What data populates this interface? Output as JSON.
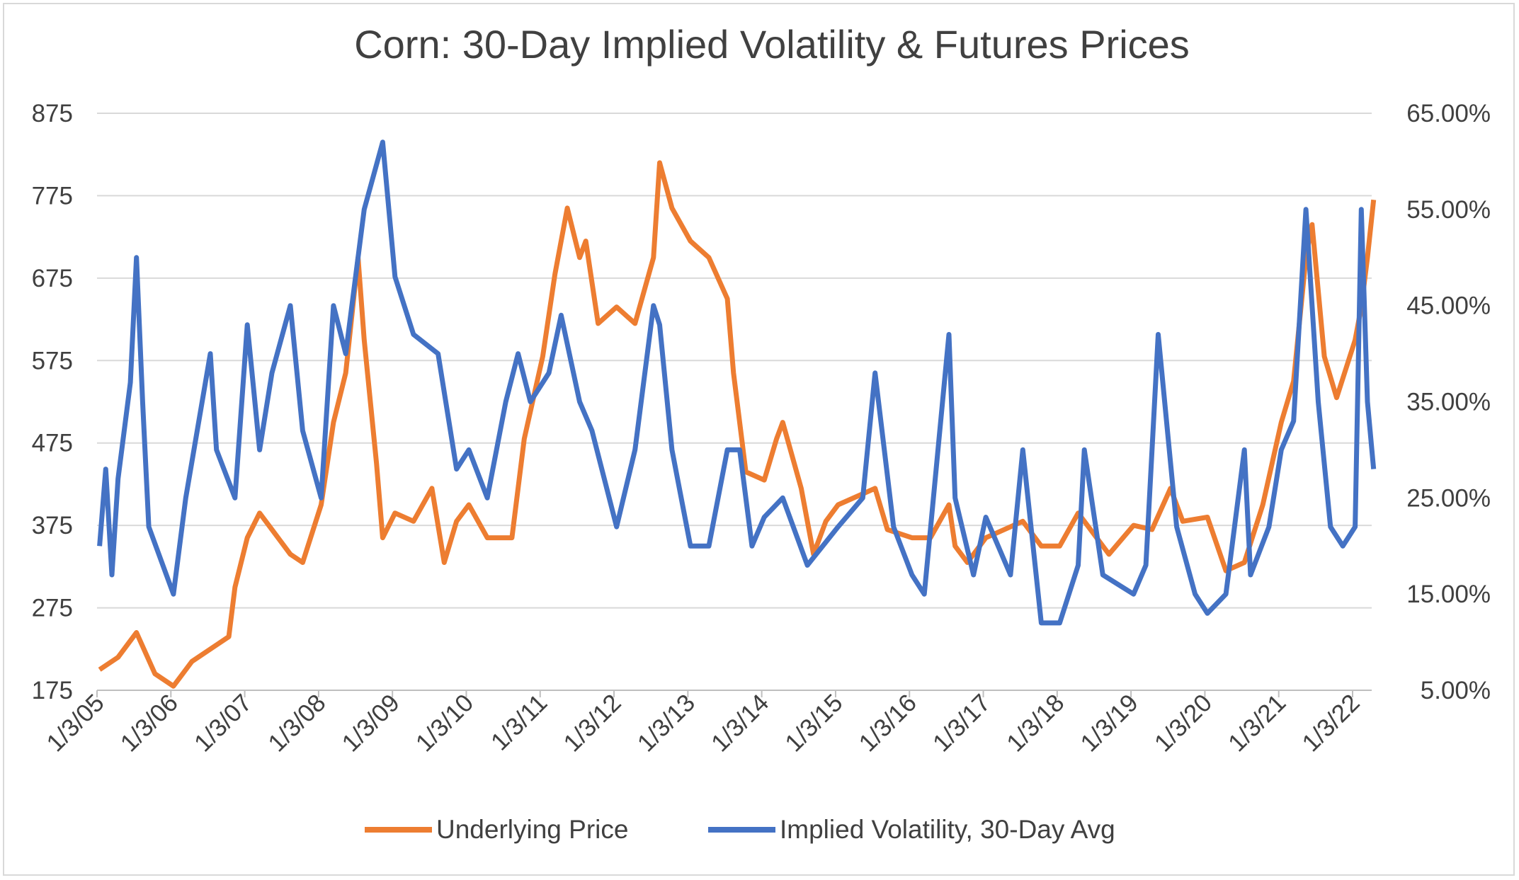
{
  "chart_data": {
    "type": "line",
    "title": "Corn: 30-Day Implied Volatility & Futures Prices",
    "xlabel": "",
    "ylabel": "",
    "x_tick_labels": [
      "1/3/05",
      "1/3/06",
      "1/3/07",
      "1/3/08",
      "1/3/09",
      "1/3/10",
      "1/3/11",
      "1/3/12",
      "1/3/13",
      "1/3/14",
      "1/3/15",
      "1/3/16",
      "1/3/17",
      "1/3/18",
      "1/3/19",
      "1/3/20",
      "1/3/21",
      "1/3/22"
    ],
    "y_left": {
      "ylim": [
        175,
        875
      ],
      "ticks": [
        "875",
        "775",
        "675",
        "575",
        "475",
        "375",
        "275",
        "175"
      ]
    },
    "y_right": {
      "ylim": [
        0.05,
        0.65
      ],
      "ticks": [
        "65.00%",
        "55.00%",
        "45.00%",
        "35.00%",
        "25.00%",
        "15.00%",
        "5.00%"
      ]
    },
    "grid": true,
    "legend_position": "bottom",
    "series": [
      {
        "name": "Underlying Price",
        "axis": "left",
        "color": "#ed7d31",
        "x": [
          "2005-01",
          "2005-04",
          "2005-07",
          "2005-10",
          "2006-01",
          "2006-04",
          "2006-08",
          "2006-10",
          "2006-11",
          "2007-01",
          "2007-03",
          "2007-05",
          "2007-08",
          "2007-10",
          "2008-01",
          "2008-03",
          "2008-05",
          "2008-07",
          "2008-08",
          "2008-10",
          "2008-11",
          "2009-01",
          "2009-04",
          "2009-07",
          "2009-09",
          "2009-11",
          "2010-01",
          "2010-04",
          "2010-08",
          "2010-10",
          "2011-01",
          "2011-03",
          "2011-05",
          "2011-07",
          "2011-08",
          "2011-10",
          "2012-01",
          "2012-04",
          "2012-07",
          "2012-08",
          "2012-10",
          "2013-01",
          "2013-04",
          "2013-07",
          "2013-08",
          "2013-10",
          "2014-01",
          "2014-03",
          "2014-04",
          "2014-07",
          "2014-09",
          "2014-11",
          "2015-01",
          "2015-07",
          "2015-09",
          "2016-01",
          "2016-04",
          "2016-07",
          "2016-08",
          "2016-10",
          "2017-01",
          "2017-07",
          "2017-10",
          "2018-01",
          "2018-04",
          "2018-07",
          "2018-09",
          "2019-01",
          "2019-04",
          "2019-07",
          "2019-09",
          "2020-01",
          "2020-04",
          "2020-07",
          "2020-10",
          "2021-01",
          "2021-03",
          "2021-05",
          "2021-06",
          "2021-08",
          "2021-10",
          "2022-01",
          "2022-02",
          "2022-03",
          "2022-04"
        ],
        "y": [
          200,
          215,
          245,
          195,
          180,
          210,
          230,
          240,
          300,
          360,
          390,
          370,
          340,
          330,
          400,
          500,
          560,
          700,
          600,
          450,
          360,
          390,
          380,
          420,
          330,
          380,
          400,
          360,
          360,
          480,
          580,
          680,
          760,
          700,
          720,
          620,
          640,
          620,
          700,
          815,
          760,
          720,
          700,
          650,
          560,
          440,
          430,
          480,
          500,
          420,
          340,
          380,
          400,
          420,
          370,
          360,
          360,
          400,
          350,
          330,
          360,
          380,
          350,
          350,
          390,
          360,
          340,
          375,
          370,
          420,
          380,
          385,
          320,
          330,
          400,
          500,
          550,
          700,
          740,
          580,
          530,
          600,
          640,
          700,
          770
        ]
      },
      {
        "name": "Implied Volatility, 30-Day Avg",
        "axis": "right",
        "color": "#4472c4",
        "x": [
          "2005-01",
          "2005-02",
          "2005-03",
          "2005-04",
          "2005-06",
          "2005-07",
          "2005-08",
          "2005-09",
          "2006-01",
          "2006-03",
          "2006-07",
          "2006-08",
          "2006-11",
          "2007-01",
          "2007-03",
          "2007-05",
          "2007-08",
          "2007-10",
          "2008-01",
          "2008-03",
          "2008-05",
          "2008-08",
          "2008-11",
          "2009-01",
          "2009-04",
          "2009-08",
          "2009-11",
          "2010-01",
          "2010-04",
          "2010-07",
          "2010-09",
          "2010-11",
          "2011-02",
          "2011-04",
          "2011-07",
          "2011-09",
          "2012-01",
          "2012-04",
          "2012-07",
          "2012-08",
          "2012-10",
          "2013-01",
          "2013-04",
          "2013-07",
          "2013-09",
          "2013-11",
          "2014-01",
          "2014-04",
          "2014-08",
          "2015-01",
          "2015-05",
          "2015-07",
          "2015-10",
          "2016-01",
          "2016-03",
          "2016-07",
          "2016-08",
          "2016-11",
          "2017-01",
          "2017-05",
          "2017-07",
          "2017-10",
          "2018-01",
          "2018-04",
          "2018-05",
          "2018-08",
          "2019-01",
          "2019-03",
          "2019-05",
          "2019-08",
          "2019-11",
          "2020-01",
          "2020-04",
          "2020-07",
          "2020-08",
          "2020-11",
          "2021-01",
          "2021-03",
          "2021-05",
          "2021-07",
          "2021-09",
          "2021-11",
          "2022-01",
          "2022-02",
          "2022-03",
          "2022-04"
        ],
        "y": [
          0.2,
          0.28,
          0.17,
          0.27,
          0.37,
          0.5,
          0.35,
          0.22,
          0.15,
          0.25,
          0.4,
          0.3,
          0.25,
          0.43,
          0.3,
          0.38,
          0.45,
          0.32,
          0.25,
          0.45,
          0.4,
          0.55,
          0.62,
          0.48,
          0.42,
          0.4,
          0.28,
          0.3,
          0.25,
          0.35,
          0.4,
          0.35,
          0.38,
          0.44,
          0.35,
          0.32,
          0.22,
          0.3,
          0.45,
          0.43,
          0.3,
          0.2,
          0.2,
          0.3,
          0.3,
          0.2,
          0.23,
          0.25,
          0.18,
          0.22,
          0.25,
          0.38,
          0.22,
          0.17,
          0.15,
          0.42,
          0.25,
          0.17,
          0.23,
          0.17,
          0.3,
          0.12,
          0.12,
          0.18,
          0.3,
          0.17,
          0.15,
          0.18,
          0.42,
          0.22,
          0.15,
          0.13,
          0.15,
          0.3,
          0.17,
          0.22,
          0.3,
          0.33,
          0.55,
          0.35,
          0.22,
          0.2,
          0.22,
          0.55,
          0.35,
          0.28
        ]
      }
    ]
  }
}
